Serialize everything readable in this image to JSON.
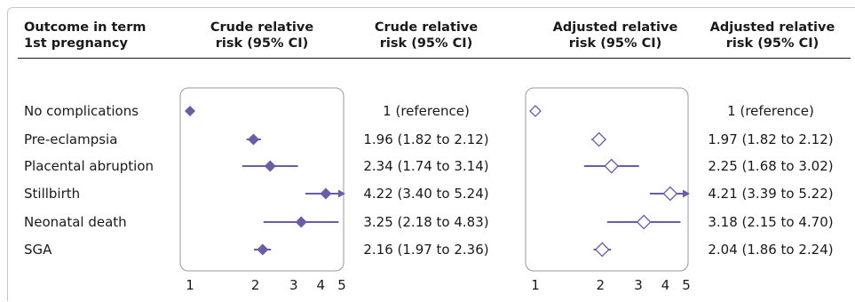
{
  "headers": {
    "outcome": [
      "Outcome in term",
      "1st pregnancy"
    ],
    "crude_plot": [
      "Crude relative",
      "risk (95% CI)"
    ],
    "crude_text": [
      "Crude relative",
      "risk (95% CI)"
    ],
    "adj_plot": [
      "Adjusted relative",
      "risk (95% CI)"
    ],
    "adj_text": [
      "Adjusted relative",
      "risk (95% CI)"
    ]
  },
  "colors": {
    "marker": "#6b5ca5",
    "line": "#6b5ca5",
    "frame": "#999999",
    "text": "#1a1a1a"
  },
  "chart_data": [
    {
      "type": "forest",
      "name": "Crude relative risk (95% CI)",
      "scale": "log",
      "xlim": [
        1,
        5
      ],
      "ticks": [
        "1",
        "2",
        "3",
        "4",
        "5"
      ],
      "marker_style": "filled-diamond",
      "categories": [
        "No complications",
        "Pre-eclampsia",
        "Placental abruption",
        "Stillbirth",
        "Neonatal death",
        "SGA"
      ],
      "estimate": [
        1,
        1.96,
        2.34,
        4.22,
        3.25,
        2.16
      ],
      "lower": [
        null,
        1.82,
        1.74,
        3.4,
        2.18,
        1.97
      ],
      "upper": [
        null,
        2.12,
        3.14,
        5.24,
        4.83,
        2.36
      ],
      "labels": [
        "1 (reference)",
        "1.96 (1.82 to 2.12)",
        "2.34 (1.74 to 3.14)",
        "4.22 (3.40 to 5.24)",
        "3.25 (2.18 to 4.83)",
        "2.16 (1.97 to 2.36)"
      ]
    },
    {
      "type": "forest",
      "name": "Adjusted relative risk (95% CI)",
      "scale": "log",
      "xlim": [
        1,
        5
      ],
      "ticks": [
        "1",
        "2",
        "3",
        "4",
        "5"
      ],
      "marker_style": "open-diamond",
      "categories": [
        "No complications",
        "Pre-eclampsia",
        "Placental abruption",
        "Stillbirth",
        "Neonatal death",
        "SGA"
      ],
      "estimate": [
        1,
        1.97,
        2.25,
        4.21,
        3.18,
        2.04
      ],
      "lower": [
        null,
        1.82,
        1.68,
        3.39,
        2.15,
        1.86
      ],
      "upper": [
        null,
        2.12,
        3.02,
        5.22,
        4.7,
        2.24
      ],
      "labels": [
        "1 (reference)",
        "1.97 (1.82 to 2.12)",
        "2.25 (1.68 to 3.02)",
        "4.21 (3.39 to 5.22)",
        "3.18 (2.15 to 4.70)",
        "2.04 (1.86 to 2.24)"
      ]
    }
  ]
}
